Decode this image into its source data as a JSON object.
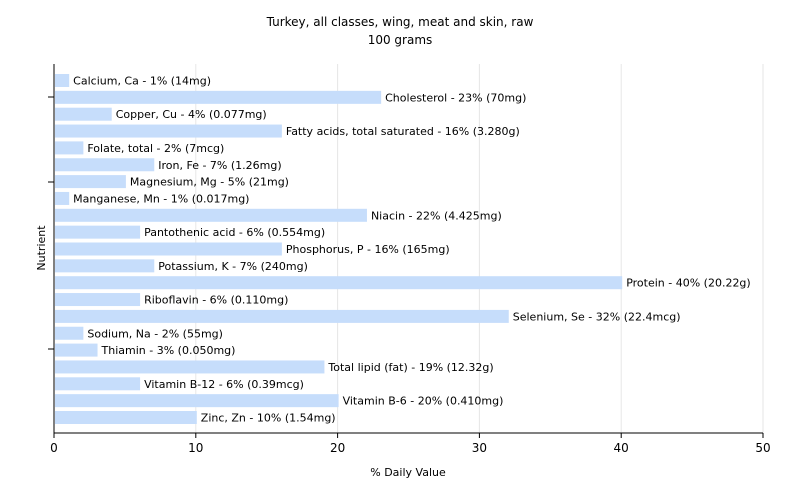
{
  "chart_data": {
    "type": "bar",
    "orientation": "horizontal",
    "title": "Turkey, all classes, wing, meat and skin, raw",
    "subtitle": "100 grams",
    "xlabel": "% Daily Value",
    "ylabel": "Nutrient",
    "xlim": [
      0,
      50
    ],
    "xticks": [
      "0",
      "10",
      "20",
      "30",
      "40",
      "50"
    ],
    "grid": true,
    "bar_color": "#c6ddfb",
    "categories": [
      "Calcium, Ca",
      "Cholesterol",
      "Copper, Cu",
      "Fatty acids, total saturated",
      "Folate, total",
      "Iron, Fe",
      "Magnesium, Mg",
      "Manganese, Mn",
      "Niacin",
      "Pantothenic acid",
      "Phosphorus, P",
      "Potassium, K",
      "Protein",
      "Riboflavin",
      "Selenium, Se",
      "Sodium, Na",
      "Thiamin",
      "Total lipid (fat)",
      "Vitamin B-12",
      "Vitamin B-6",
      "Zinc, Zn"
    ],
    "values": [
      1,
      23,
      4,
      16,
      2,
      7,
      5,
      1,
      22,
      6,
      16,
      7,
      40,
      6,
      32,
      2,
      3,
      19,
      6,
      20,
      10
    ],
    "labels": [
      "Calcium, Ca - 1% (14mg)",
      "Cholesterol - 23% (70mg)",
      "Copper, Cu - 4% (0.077mg)",
      "Fatty acids, total saturated - 16% (3.280g)",
      "Folate, total - 2% (7mcg)",
      "Iron, Fe - 7% (1.26mg)",
      "Magnesium, Mg - 5% (21mg)",
      "Manganese, Mn - 1% (0.017mg)",
      "Niacin - 22% (4.425mg)",
      "Pantothenic acid - 6% (0.554mg)",
      "Phosphorus, P - 16% (165mg)",
      "Potassium, K - 7% (240mg)",
      "Protein - 40% (20.22g)",
      "Riboflavin - 6% (0.110mg)",
      "Selenium, Se - 32% (22.4mcg)",
      "Sodium, Na - 2% (55mg)",
      "Thiamin - 3% (0.050mg)",
      "Total lipid (fat) - 19% (12.32g)",
      "Vitamin B-12 - 6% (0.39mcg)",
      "Vitamin B-6 - 20% (0.410mg)",
      "Zinc, Zn - 10% (1.54mg)"
    ]
  }
}
